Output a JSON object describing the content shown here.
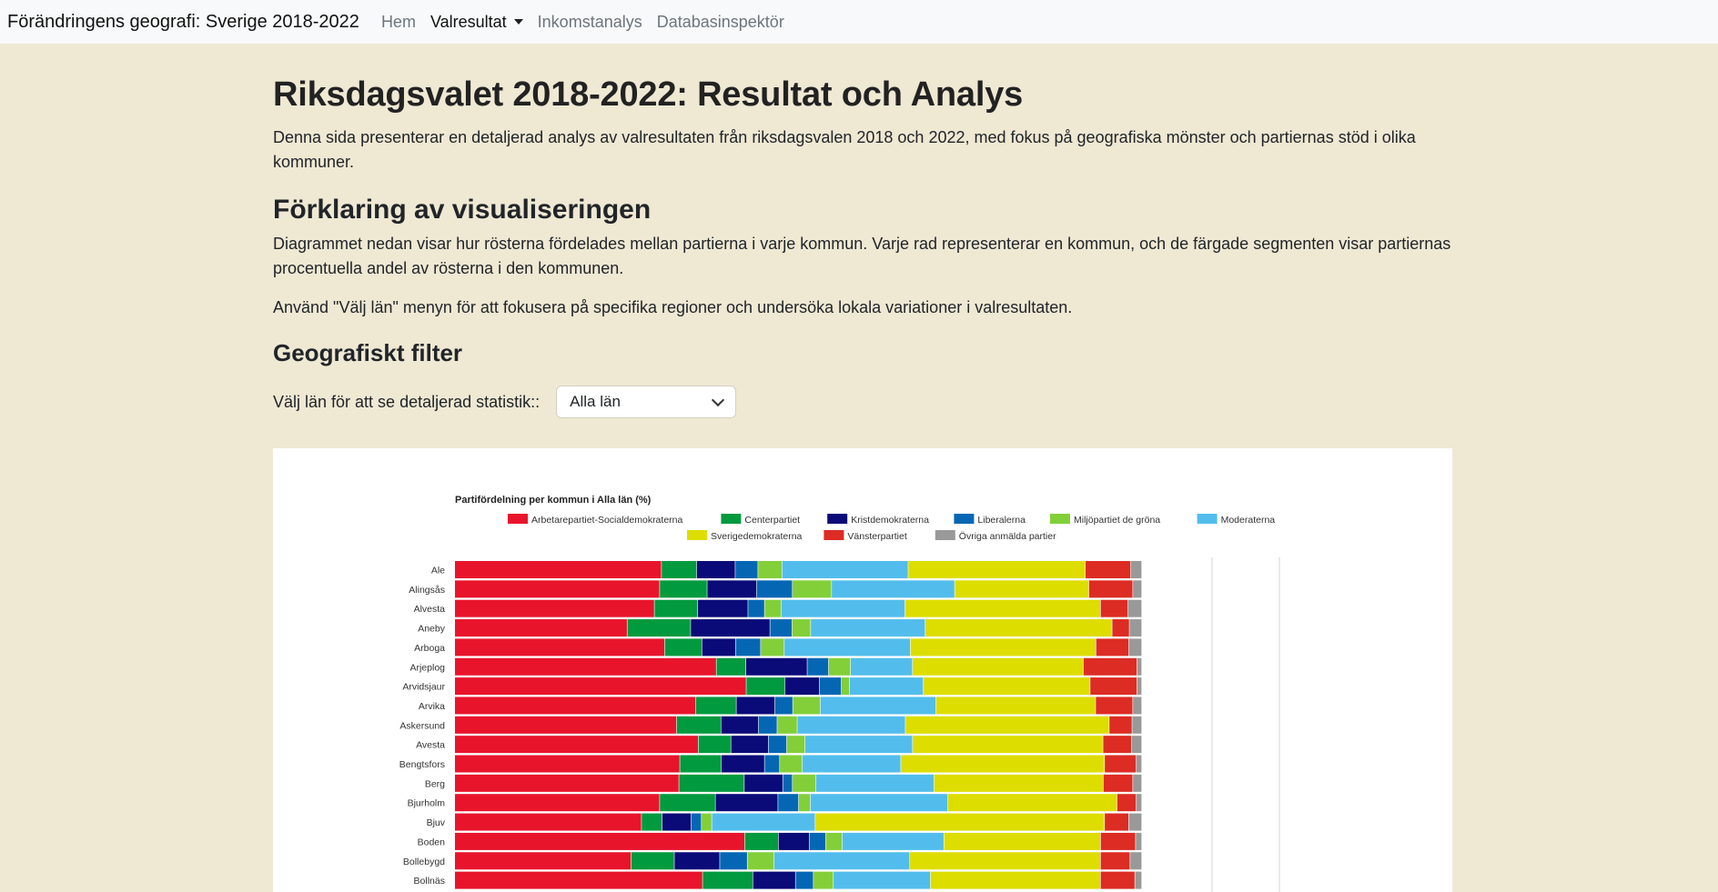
{
  "nav": {
    "brand": "Förändringens geografi: Sverige 2018-2022",
    "items": [
      "Hem",
      "Valresultat",
      "Inkomstanalys",
      "Databasinspektör"
    ]
  },
  "page": {
    "title": "Riksdagsvalet 2018-2022: Resultat och Analys",
    "intro": "Denna sida presenterar en detaljerad analys av valresultaten från riksdagsvalen 2018 och 2022, med fokus på geografiska mönster och partiernas stöd i olika kommuner.",
    "explain_heading": "Förklaring av visualiseringen",
    "explain_p1": "Diagrammet nedan visar hur rösterna fördelades mellan partierna i varje kommun. Varje rad representerar en kommun, och de färgade segmenten visar partiernas procentuella andel av rösterna i den kommunen.",
    "explain_p2": "Använd \"Välj län\" menyn för att fokusera på specifika regioner och undersöka lokala variationer i valresultaten.",
    "filter_heading": "Geografiskt filter",
    "filter_label": "Välj län för att se detaljerad statistik::",
    "filter_value": "Alla län"
  },
  "chart_data": {
    "type": "bar",
    "orientation": "horizontal",
    "stacked": true,
    "title": "Partifördelning per kommun i Alla län (%)",
    "legend_position": "top",
    "categories": [
      "Ale",
      "Alingsås",
      "Alvesta",
      "Aneby",
      "Arboga",
      "Arjeplog",
      "Arvidsjaur",
      "Arvika",
      "Askersund",
      "Avesta",
      "Bengtsfors",
      "Berg",
      "Bjurholm",
      "Bjuv",
      "Boden",
      "Bollebygd",
      "Bollnäs"
    ],
    "series": [
      {
        "name": "Arbetarepartiet-Socialdemokraterna",
        "color": "#e8142c",
        "values": [
          30.0,
          29.8,
          29.0,
          25.0,
          29.3,
          38.0,
          42.3,
          35.0,
          32.0,
          35.8,
          32.7,
          32.6,
          29.8,
          27.1,
          42.2,
          25.6,
          36.0
        ]
      },
      {
        "name": "Centerpartiet",
        "color": "#029a3e",
        "values": [
          5.1,
          6.9,
          6.3,
          9.2,
          5.2,
          4.3,
          5.6,
          5.9,
          6.4,
          4.8,
          6.0,
          9.5,
          8.1,
          3.0,
          4.9,
          6.3,
          7.3
        ]
      },
      {
        "name": "Kristdemokraterna",
        "color": "#0a0a78",
        "values": [
          5.6,
          7.2,
          7.3,
          11.5,
          4.7,
          8.9,
          5.0,
          5.6,
          5.4,
          5.5,
          6.3,
          5.6,
          9.1,
          4.2,
          4.5,
          6.6,
          6.2
        ]
      },
      {
        "name": "Liberalerna",
        "color": "#0567b4",
        "values": [
          3.3,
          5.2,
          2.4,
          3.2,
          3.5,
          3.1,
          3.2,
          2.6,
          2.7,
          2.7,
          2.2,
          1.4,
          3.0,
          1.5,
          2.4,
          4.0,
          2.6
        ]
      },
      {
        "name": "Miljöpartiet de gröna",
        "color": "#83cf39",
        "values": [
          3.5,
          5.7,
          2.4,
          2.7,
          3.3,
          3.2,
          1.2,
          4.0,
          2.9,
          2.7,
          3.3,
          3.4,
          1.7,
          1.5,
          2.4,
          3.9,
          2.9
        ]
      },
      {
        "name": "Moderaterna",
        "color": "#52bdec",
        "values": [
          18.3,
          17.9,
          18.0,
          16.6,
          17.6,
          9.0,
          10.7,
          16.8,
          15.6,
          15.8,
          14.3,
          17.2,
          20.0,
          15.0,
          14.8,
          19.7,
          14.1
        ]
      },
      {
        "name": "Sverigedemokraterna",
        "color": "#dddd00",
        "values": [
          25.7,
          19.5,
          28.4,
          27.1,
          25.9,
          24.8,
          24.2,
          23.2,
          29.4,
          28.0,
          29.6,
          24.6,
          24.6,
          42.0,
          22.8,
          27.7,
          24.7
        ]
      },
      {
        "name": "Vänsterpartiet",
        "color": "#dc2c24",
        "values": [
          6.6,
          6.4,
          4.0,
          2.5,
          4.6,
          7.8,
          6.8,
          5.4,
          3.3,
          4.2,
          4.6,
          4.3,
          2.8,
          3.5,
          5.1,
          4.3,
          5.0
        ]
      },
      {
        "name": "Övriga anmälda partier",
        "color": "#999999",
        "values": [
          1.6,
          1.3,
          2.0,
          1.8,
          1.8,
          0.7,
          0.7,
          1.3,
          1.4,
          1.5,
          0.8,
          1.3,
          0.8,
          1.9,
          0.9,
          1.7,
          1.0
        ]
      }
    ]
  }
}
